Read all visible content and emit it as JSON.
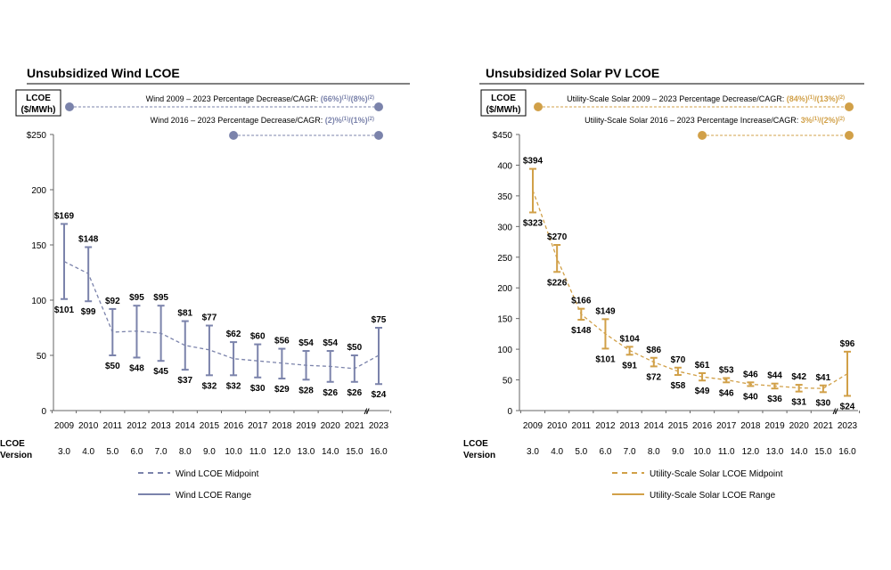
{
  "chart_data": [
    {
      "type": "line",
      "title": "Unsubsidized Wind LCOE",
      "ylabel": "LCOE ($/MWh)",
      "color": "#7b83ab",
      "ylim": [
        0,
        250
      ],
      "yticks": [
        "0",
        "50",
        "100",
        "150",
        "200",
        "$250"
      ],
      "ytick_values": [
        0,
        50,
        100,
        150,
        200,
        250
      ],
      "categories": [
        "2009",
        "2010",
        "2011",
        "2012",
        "2013",
        "2014",
        "2015",
        "2016",
        "2017",
        "2018",
        "2019",
        "2020",
        "2021",
        "2023"
      ],
      "version_label": "LCOE Version",
      "versions": [
        "3.0",
        "4.0",
        "5.0",
        "6.0",
        "7.0",
        "8.0",
        "9.0",
        "10.0",
        "11.0",
        "12.0",
        "13.0",
        "14.0",
        "15.0",
        "16.0"
      ],
      "axis_break": "//",
      "high": [
        169,
        148,
        92,
        95,
        95,
        81,
        77,
        62,
        60,
        56,
        54,
        54,
        50,
        75
      ],
      "low": [
        101,
        99,
        50,
        48,
        45,
        37,
        32,
        32,
        30,
        29,
        28,
        26,
        26,
        24
      ],
      "high_labels": [
        "$169",
        "$148",
        "$92",
        "$95",
        "$95",
        "$81",
        "$77",
        "$62",
        "$60",
        "$56",
        "$54",
        "$54",
        "$50",
        "$75"
      ],
      "low_labels": [
        "$101",
        "$99",
        "$50",
        "$48",
        "$45",
        "$37",
        "$32",
        "$32",
        "$30",
        "$29",
        "$28",
        "$26",
        "$26",
        "$24"
      ],
      "midpoint": [
        135,
        124,
        71,
        72,
        70,
        59,
        55,
        47,
        45,
        43,
        41,
        40,
        38,
        50
      ],
      "annotations": [
        {
          "text": "Wind 2009 – 2023 Percentage Decrease/CAGR: ",
          "value": "(66%)",
          "sup1": "(1)",
          "sep": "/",
          "value2": "(8%)",
          "sup2": "(2)",
          "from": "2009",
          "to": "2023"
        },
        {
          "text": "Wind 2016 – 2023 Percentage Decrease/CAGR: ",
          "value": "(2)%",
          "sup1": "(1)",
          "sep": "/",
          "value2": "(1%)",
          "sup2": "(2)",
          "from": "2016",
          "to": "2023"
        }
      ],
      "legend": [
        "Wind LCOE Midpoint",
        "Wind LCOE Range"
      ]
    },
    {
      "type": "line",
      "title": "Unsubsidized Solar PV LCOE",
      "ylabel": "LCOE ($/MWh)",
      "color": "#d1a048",
      "ylim": [
        0,
        450
      ],
      "yticks": [
        "0",
        "50",
        "100",
        "150",
        "200",
        "250",
        "300",
        "350",
        "400",
        "$450"
      ],
      "ytick_values": [
        0,
        50,
        100,
        150,
        200,
        250,
        300,
        350,
        400,
        450
      ],
      "categories": [
        "2009",
        "2010",
        "2011",
        "2012",
        "2013",
        "2014",
        "2015",
        "2016",
        "2017",
        "2018",
        "2019",
        "2020",
        "2021",
        "2023"
      ],
      "version_label": "LCOE Version",
      "versions": [
        "3.0",
        "4.0",
        "5.0",
        "6.0",
        "7.0",
        "8.0",
        "9.0",
        "10.0",
        "11.0",
        "12.0",
        "13.0",
        "14.0",
        "15.0",
        "16.0"
      ],
      "axis_break": "//",
      "high": [
        394,
        270,
        166,
        149,
        104,
        86,
        70,
        61,
        53,
        46,
        44,
        42,
        41,
        96
      ],
      "low": [
        323,
        226,
        148,
        101,
        91,
        72,
        58,
        49,
        46,
        40,
        36,
        31,
        30,
        24
      ],
      "high_labels": [
        "$394",
        "$270",
        "$166",
        "$149",
        "$104",
        "$86",
        "$70",
        "$61",
        "$53",
        "$46",
        "$44",
        "$42",
        "$41",
        "$96"
      ],
      "low_labels": [
        "$323",
        "$226",
        "$148",
        "$101",
        "$91",
        "$72",
        "$58",
        "$49",
        "$46",
        "$40",
        "$36",
        "$31",
        "$30",
        "$24"
      ],
      "midpoint": [
        359,
        248,
        157,
        125,
        98,
        79,
        64,
        55,
        50,
        43,
        40,
        37,
        36,
        60
      ],
      "annotations": [
        {
          "text": "Utility-Scale Solar 2009 – 2023 Percentage Decrease/CAGR: ",
          "value": "(84%)",
          "sup1": "(1)",
          "sep": "/",
          "value2": "(13%)",
          "sup2": "(2)",
          "from": "2009",
          "to": "2023"
        },
        {
          "text": "Utility-Scale Solar 2016 – 2023 Percentage Increase/CAGR: ",
          "value": "3%",
          "sup1": "(1)",
          "sep": "/",
          "value2": "(2%)",
          "sup2": "(2)",
          "from": "2016",
          "to": "2023"
        }
      ],
      "legend": [
        "Utility-Scale Solar LCOE Midpoint",
        "Utility-Scale Solar LCOE Range"
      ]
    }
  ]
}
